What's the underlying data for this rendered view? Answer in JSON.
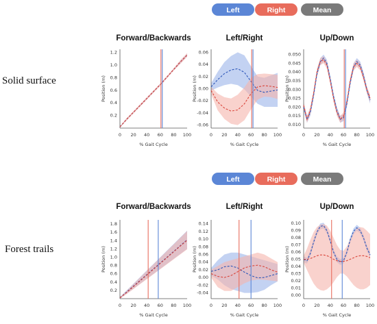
{
  "legend": {
    "items": [
      {
        "label": "Left",
        "color": "#5b86d6"
      },
      {
        "label": "Right",
        "color": "#e86c5c"
      },
      {
        "label": "Mean",
        "color": "#7a7a7a"
      }
    ]
  },
  "colors": {
    "left_line": "#2b55b8",
    "left_band": "#a9bfec",
    "right_line": "#d9443a",
    "right_band": "#f5b4ac",
    "marker_left": "#5b86d6",
    "marker_right": "#e86c5c",
    "axis": "#555555"
  },
  "rows": [
    {
      "label": "Solid surface",
      "panels": [
        {
          "title": "Forward/Backwards",
          "ylabel": "Position (m)",
          "xlabel": "% Gait Cycle",
          "yticks": [
            "0.2",
            "0.4",
            "0.6",
            "0.8",
            "1.0",
            "1.2"
          ]
        },
        {
          "title": "Left/Right",
          "ylabel": "Position (m)",
          "xlabel": "% Gait Cycle",
          "yticks": [
            "-0.06",
            "-0.04",
            "-0.02",
            "0.00",
            "0.02",
            "0.04",
            "0.06"
          ]
        },
        {
          "title": "Up/Down",
          "ylabel": "Position (m)",
          "xlabel": "% Gait Cycle",
          "yticks": [
            "0.010",
            "0.015",
            "0.020",
            "0.025",
            "0.030",
            "0.035",
            "0.040",
            "0.045",
            "0.050"
          ]
        }
      ]
    },
    {
      "label": "Forest trails",
      "panels": [
        {
          "title": "Forward/Backwards",
          "ylabel": "Position (m)",
          "xlabel": "% Gait Cycle",
          "yticks": [
            "0.2",
            "0.4",
            "0.6",
            "0.8",
            "1.0",
            "1.2",
            "1.4",
            "1.6",
            "1.8"
          ]
        },
        {
          "title": "Left/Right",
          "ylabel": "Position (m)",
          "xlabel": "% Gait Cycle",
          "yticks": [
            "-0.04",
            "-0.02",
            "0.00",
            "0.02",
            "0.04",
            "0.06",
            "0.08",
            "0.10",
            "0.12",
            "0.14"
          ]
        },
        {
          "title": "Up/Down",
          "ylabel": "Position (m)",
          "xlabel": "% Gait Cycle",
          "yticks": [
            "0.00",
            "0.01",
            "0.02",
            "0.03",
            "0.04",
            "0.05",
            "0.06",
            "0.07",
            "0.08",
            "0.09",
            "0.10"
          ]
        }
      ]
    }
  ],
  "chart_data": [
    {
      "type": "area",
      "row": "Solid surface",
      "title": "Forward/Backwards",
      "xlabel": "% Gait Cycle",
      "ylabel": "Position (m)",
      "xlim": [
        0,
        100
      ],
      "ylim": [
        0,
        1.25
      ],
      "xticks": [
        0,
        20,
        40,
        60,
        80,
        100
      ],
      "yticks": [
        0.2,
        0.4,
        0.6,
        0.8,
        1.0,
        1.2
      ],
      "x": [
        0,
        10,
        20,
        30,
        40,
        50,
        60,
        70,
        80,
        90,
        100
      ],
      "series": [
        {
          "name": "Left",
          "mean": [
            0.02,
            0.14,
            0.25,
            0.36,
            0.47,
            0.58,
            0.69,
            0.81,
            0.93,
            1.05,
            1.16
          ],
          "lower": [
            0.01,
            0.13,
            0.24,
            0.35,
            0.46,
            0.57,
            0.68,
            0.8,
            0.92,
            1.03,
            1.14
          ],
          "upper": [
            0.03,
            0.15,
            0.26,
            0.37,
            0.48,
            0.59,
            0.7,
            0.82,
            0.94,
            1.07,
            1.18
          ]
        },
        {
          "name": "Right",
          "mean": [
            0.02,
            0.14,
            0.25,
            0.36,
            0.47,
            0.58,
            0.69,
            0.81,
            0.93,
            1.05,
            1.16
          ],
          "lower": [
            0.01,
            0.12,
            0.23,
            0.34,
            0.45,
            0.56,
            0.67,
            0.79,
            0.91,
            1.02,
            1.13
          ],
          "upper": [
            0.03,
            0.16,
            0.27,
            0.38,
            0.49,
            0.6,
            0.71,
            0.83,
            0.95,
            1.08,
            1.19
          ]
        }
      ],
      "markers": {
        "Left": 63,
        "Right": 61
      }
    },
    {
      "type": "area",
      "row": "Solid surface",
      "title": "Left/Right",
      "xlabel": "% Gait Cycle",
      "ylabel": "Position (m)",
      "xlim": [
        0,
        100
      ],
      "ylim": [
        -0.065,
        0.065
      ],
      "xticks": [
        0,
        20,
        40,
        60,
        80,
        100
      ],
      "yticks": [
        -0.06,
        -0.04,
        -0.02,
        0.0,
        0.02,
        0.04,
        0.06
      ],
      "x": [
        0,
        10,
        20,
        30,
        40,
        50,
        60,
        70,
        80,
        90,
        100
      ],
      "series": [
        {
          "name": "Left",
          "mean": [
            0.003,
            0.015,
            0.025,
            0.031,
            0.033,
            0.027,
            0.012,
            -0.003,
            -0.006,
            -0.004,
            -0.002
          ],
          "lower": [
            -0.003,
            0.002,
            0.006,
            0.008,
            0.006,
            -0.001,
            -0.013,
            -0.025,
            -0.03,
            -0.03,
            -0.03
          ],
          "upper": [
            0.009,
            0.028,
            0.044,
            0.054,
            0.06,
            0.055,
            0.037,
            0.02,
            0.018,
            0.022,
            0.026
          ]
        },
        {
          "name": "Right",
          "mean": [
            -0.003,
            -0.022,
            -0.032,
            -0.037,
            -0.035,
            -0.025,
            -0.008,
            0.003,
            0.005,
            0.004,
            0.002
          ],
          "lower": [
            -0.009,
            -0.036,
            -0.05,
            -0.058,
            -0.06,
            -0.052,
            -0.034,
            -0.018,
            -0.013,
            -0.014,
            -0.017
          ],
          "upper": [
            0.003,
            -0.008,
            -0.014,
            -0.016,
            -0.01,
            0.002,
            0.018,
            0.024,
            0.025,
            0.024,
            0.023
          ]
        }
      ],
      "markers": {
        "Left": 63,
        "Right": 61
      }
    },
    {
      "type": "area",
      "row": "Solid surface",
      "title": "Up/Down",
      "xlabel": "% Gait Cycle",
      "ylabel": "Position (m)",
      "xlim": [
        0,
        100
      ],
      "ylim": [
        0.008,
        0.053
      ],
      "xticks": [
        0,
        20,
        40,
        60,
        80,
        100
      ],
      "yticks": [
        0.01,
        0.015,
        0.02,
        0.025,
        0.03,
        0.035,
        0.04,
        0.045,
        0.05
      ],
      "x": [
        0,
        5,
        10,
        15,
        20,
        25,
        30,
        35,
        40,
        45,
        50,
        55,
        60,
        65,
        70,
        75,
        80,
        85,
        90,
        95,
        100
      ],
      "series": [
        {
          "name": "Left",
          "mean": [
            0.02,
            0.013,
            0.017,
            0.027,
            0.039,
            0.046,
            0.048,
            0.045,
            0.036,
            0.026,
            0.018,
            0.013,
            0.014,
            0.022,
            0.034,
            0.043,
            0.046,
            0.044,
            0.038,
            0.03,
            0.024
          ],
          "lower": [
            0.018,
            0.011,
            0.015,
            0.025,
            0.037,
            0.044,
            0.046,
            0.043,
            0.034,
            0.024,
            0.016,
            0.011,
            0.012,
            0.02,
            0.032,
            0.041,
            0.044,
            0.042,
            0.036,
            0.028,
            0.022
          ],
          "upper": [
            0.022,
            0.015,
            0.019,
            0.029,
            0.041,
            0.048,
            0.05,
            0.047,
            0.038,
            0.028,
            0.02,
            0.015,
            0.016,
            0.024,
            0.036,
            0.045,
            0.048,
            0.046,
            0.04,
            0.032,
            0.026
          ]
        },
        {
          "name": "Right",
          "mean": [
            0.021,
            0.013,
            0.018,
            0.028,
            0.04,
            0.046,
            0.047,
            0.044,
            0.035,
            0.025,
            0.017,
            0.013,
            0.015,
            0.023,
            0.035,
            0.043,
            0.045,
            0.043,
            0.037,
            0.03,
            0.025
          ],
          "lower": [
            0.019,
            0.011,
            0.016,
            0.026,
            0.038,
            0.044,
            0.045,
            0.042,
            0.033,
            0.023,
            0.015,
            0.011,
            0.013,
            0.021,
            0.033,
            0.041,
            0.043,
            0.041,
            0.035,
            0.028,
            0.023
          ],
          "upper": [
            0.023,
            0.015,
            0.02,
            0.03,
            0.042,
            0.048,
            0.049,
            0.046,
            0.037,
            0.027,
            0.019,
            0.015,
            0.017,
            0.025,
            0.037,
            0.045,
            0.047,
            0.045,
            0.039,
            0.032,
            0.027
          ]
        }
      ],
      "markers": {
        "Left": 63,
        "Right": 61
      }
    },
    {
      "type": "area",
      "row": "Forest trails",
      "title": "Forward/Backwards",
      "xlabel": "% Gait Cycle",
      "ylabel": "Position (m)",
      "xlim": [
        0,
        100
      ],
      "ylim": [
        0,
        1.9
      ],
      "xticks": [
        0,
        20,
        40,
        60,
        80,
        100
      ],
      "yticks": [
        0.2,
        0.4,
        0.6,
        0.8,
        1.0,
        1.2,
        1.4,
        1.6,
        1.8
      ],
      "x": [
        0,
        10,
        20,
        30,
        40,
        50,
        60,
        70,
        80,
        90,
        100
      ],
      "series": [
        {
          "name": "Left",
          "mean": [
            0.02,
            0.16,
            0.3,
            0.44,
            0.58,
            0.72,
            0.86,
            1.0,
            1.14,
            1.28,
            1.42
          ],
          "lower": [
            0.0,
            0.12,
            0.24,
            0.36,
            0.48,
            0.6,
            0.72,
            0.84,
            0.96,
            1.08,
            1.2
          ],
          "upper": [
            0.04,
            0.2,
            0.36,
            0.52,
            0.68,
            0.84,
            1.0,
            1.16,
            1.32,
            1.48,
            1.64
          ]
        },
        {
          "name": "Right",
          "mean": [
            0.02,
            0.15,
            0.29,
            0.43,
            0.57,
            0.71,
            0.85,
            0.99,
            1.13,
            1.27,
            1.41
          ],
          "lower": [
            0.0,
            0.11,
            0.23,
            0.35,
            0.47,
            0.59,
            0.71,
            0.83,
            0.95,
            1.07,
            1.19
          ],
          "upper": [
            0.04,
            0.19,
            0.35,
            0.51,
            0.67,
            0.83,
            0.99,
            1.15,
            1.31,
            1.47,
            1.63
          ]
        }
      ],
      "markers": {
        "Left": 57,
        "Right": 42
      }
    },
    {
      "type": "area",
      "row": "Forest trails",
      "title": "Left/Right",
      "xlabel": "% Gait Cycle",
      "ylabel": "Position (m)",
      "xlim": [
        0,
        100
      ],
      "ylim": [
        -0.055,
        0.15
      ],
      "xticks": [
        0,
        20,
        40,
        60,
        80,
        100
      ],
      "yticks": [
        -0.04,
        -0.02,
        0.0,
        0.02,
        0.04,
        0.06,
        0.08,
        0.1,
        0.12,
        0.14
      ],
      "x": [
        0,
        10,
        20,
        30,
        40,
        50,
        60,
        70,
        80,
        90,
        100
      ],
      "series": [
        {
          "name": "Left",
          "mean": [
            0.016,
            0.02,
            0.028,
            0.03,
            0.025,
            0.014,
            0.005,
            -0.001,
            0.0,
            0.005,
            0.01
          ],
          "lower": [
            0.005,
            -0.005,
            -0.02,
            -0.03,
            -0.035,
            -0.04,
            -0.04,
            -0.038,
            -0.032,
            -0.02,
            -0.01
          ],
          "upper": [
            0.025,
            0.045,
            0.06,
            0.065,
            0.065,
            0.06,
            0.055,
            0.05,
            0.045,
            0.04,
            0.035
          ]
        },
        {
          "name": "Right",
          "mean": [
            0.01,
            0.003,
            0.0,
            0.005,
            0.015,
            0.025,
            0.03,
            0.032,
            0.028,
            0.02,
            0.014
          ],
          "lower": [
            0.0,
            -0.025,
            -0.035,
            -0.035,
            -0.025,
            -0.015,
            -0.008,
            -0.005,
            -0.006,
            -0.008,
            -0.01
          ],
          "upper": [
            0.02,
            0.03,
            0.04,
            0.045,
            0.05,
            0.055,
            0.06,
            0.065,
            0.06,
            0.05,
            0.04
          ]
        }
      ],
      "markers": {
        "Left": 60,
        "Right": 42
      }
    },
    {
      "type": "area",
      "row": "Forest trails",
      "title": "Up/Down",
      "xlabel": "% Gait Cycle",
      "ylabel": "Position (m)",
      "xlim": [
        0,
        100
      ],
      "ylim": [
        -0.005,
        0.105
      ],
      "xticks": [
        0,
        20,
        40,
        60,
        80,
        100
      ],
      "yticks": [
        0.0,
        0.01,
        0.02,
        0.03,
        0.04,
        0.05,
        0.06,
        0.07,
        0.08,
        0.09,
        0.1
      ],
      "x": [
        0,
        5,
        10,
        15,
        20,
        25,
        30,
        35,
        40,
        45,
        50,
        55,
        60,
        65,
        70,
        75,
        80,
        85,
        90,
        95,
        100
      ],
      "series": [
        {
          "name": "Left",
          "mean": [
            0.05,
            0.048,
            0.058,
            0.074,
            0.088,
            0.096,
            0.097,
            0.09,
            0.076,
            0.06,
            0.05,
            0.046,
            0.048,
            0.06,
            0.077,
            0.089,
            0.094,
            0.09,
            0.08,
            0.066,
            0.056
          ],
          "lower": [
            0.046,
            0.044,
            0.054,
            0.07,
            0.084,
            0.092,
            0.093,
            0.086,
            0.072,
            0.056,
            0.046,
            0.042,
            0.044,
            0.056,
            0.073,
            0.085,
            0.09,
            0.086,
            0.076,
            0.062,
            0.052
          ],
          "upper": [
            0.054,
            0.052,
            0.062,
            0.078,
            0.092,
            0.1,
            0.101,
            0.094,
            0.08,
            0.064,
            0.054,
            0.05,
            0.052,
            0.064,
            0.081,
            0.093,
            0.098,
            0.094,
            0.084,
            0.07,
            0.06
          ]
        },
        {
          "name": "Right",
          "mean": [
            0.05,
            0.05,
            0.051,
            0.053,
            0.055,
            0.056,
            0.056,
            0.055,
            0.053,
            0.05,
            0.048,
            0.047,
            0.047,
            0.048,
            0.05,
            0.052,
            0.054,
            0.055,
            0.055,
            0.054,
            0.052
          ],
          "lower": [
            0.045,
            0.035,
            0.025,
            0.016,
            0.01,
            0.007,
            0.006,
            0.008,
            0.012,
            0.018,
            0.025,
            0.03,
            0.03,
            0.026,
            0.02,
            0.014,
            0.01,
            0.008,
            0.008,
            0.01,
            0.014
          ],
          "upper": [
            0.055,
            0.065,
            0.077,
            0.088,
            0.095,
            0.098,
            0.099,
            0.097,
            0.09,
            0.08,
            0.07,
            0.063,
            0.062,
            0.068,
            0.078,
            0.087,
            0.093,
            0.095,
            0.094,
            0.09,
            0.085
          ]
        }
      ],
      "markers": {
        "Left": 58,
        "Right": 42
      }
    }
  ]
}
